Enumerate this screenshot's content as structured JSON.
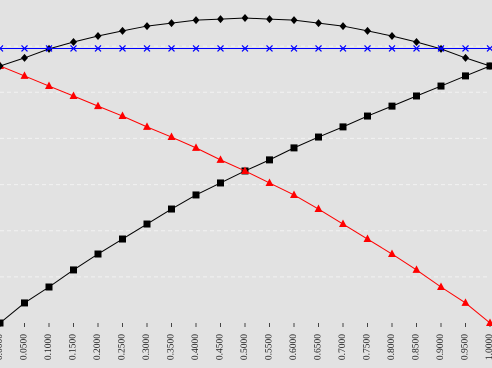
{
  "chart_data": {
    "type": "line",
    "x": [
      0,
      0.05,
      0.1,
      0.15,
      0.2,
      0.25,
      0.3,
      0.35,
      0.4,
      0.45,
      0.5,
      0.55,
      0.6,
      0.65,
      0.7,
      0.75,
      0.8,
      0.85,
      0.9,
      0.95,
      1
    ],
    "xlim": [
      0,
      1
    ],
    "xticks": [
      {
        "value": 0,
        "label": "0.0000"
      },
      {
        "value": 0.05,
        "label": "0.0500"
      },
      {
        "value": 0.1,
        "label": "0.1000"
      },
      {
        "value": 0.15,
        "label": "0.1500"
      },
      {
        "value": 0.2,
        "label": "0.2000"
      },
      {
        "value": 0.25,
        "label": "0.2500"
      },
      {
        "value": 0.3,
        "label": "0.3000"
      },
      {
        "value": 0.35,
        "label": "0.3500"
      },
      {
        "value": 0.4,
        "label": "0.4000"
      },
      {
        "value": 0.45,
        "label": "0.4500"
      },
      {
        "value": 0.5,
        "label": "0.5000"
      },
      {
        "value": 0.55,
        "label": "0.5500"
      },
      {
        "value": 0.6,
        "label": "0.6000"
      },
      {
        "value": 0.65,
        "label": "0.6500"
      },
      {
        "value": 0.7,
        "label": "0.7000"
      },
      {
        "value": 0.75,
        "label": "0.7500"
      },
      {
        "value": 0.8,
        "label": "0.8000"
      },
      {
        "value": 0.85,
        "label": "0.8500"
      },
      {
        "value": 0.9,
        "label": "0.9000"
      },
      {
        "value": 0.95,
        "label": "0.9500"
      },
      {
        "value": 1,
        "label": "1.0000"
      }
    ],
    "ylim": [
      0,
      1.4
    ],
    "yticks": [
      0.2,
      0.4,
      0.6,
      0.8,
      1,
      1.2
    ],
    "grid": true,
    "series": [
      {
        "color": "#000000",
        "marker": "square",
        "values": [
          0,
          0.087,
          0.156,
          0.23,
          0.299,
          0.364,
          0.429,
          0.494,
          0.555,
          0.607,
          0.659,
          0.707,
          0.759,
          0.806,
          0.85,
          0.897,
          0.94,
          0.984,
          1.027,
          1.071,
          1.114
        ]
      },
      {
        "color": "#ff0000",
        "marker": "triangle",
        "values": [
          1.114,
          1.071,
          1.027,
          0.984,
          0.94,
          0.897,
          0.85,
          0.806,
          0.759,
          0.707,
          0.659,
          0.607,
          0.555,
          0.494,
          0.429,
          0.364,
          0.299,
          0.23,
          0.156,
          0.087,
          0
        ]
      },
      {
        "color": "#000000",
        "marker": "diamond",
        "values": [
          1.114,
          1.149,
          1.188,
          1.218,
          1.244,
          1.266,
          1.287,
          1.3,
          1.313,
          1.317,
          1.322,
          1.317,
          1.313,
          1.3,
          1.287,
          1.266,
          1.244,
          1.218,
          1.188,
          1.149,
          1.114
        ]
      },
      {
        "color": "#0000ff",
        "marker": "x",
        "values": [
          1.19,
          1.19,
          1.19,
          1.19,
          1.19,
          1.19,
          1.19,
          1.19,
          1.19,
          1.19,
          1.19,
          1.19,
          1.19,
          1.19,
          1.19,
          1.19,
          1.19,
          1.19,
          1.19,
          1.19,
          1.19
        ]
      }
    ]
  }
}
